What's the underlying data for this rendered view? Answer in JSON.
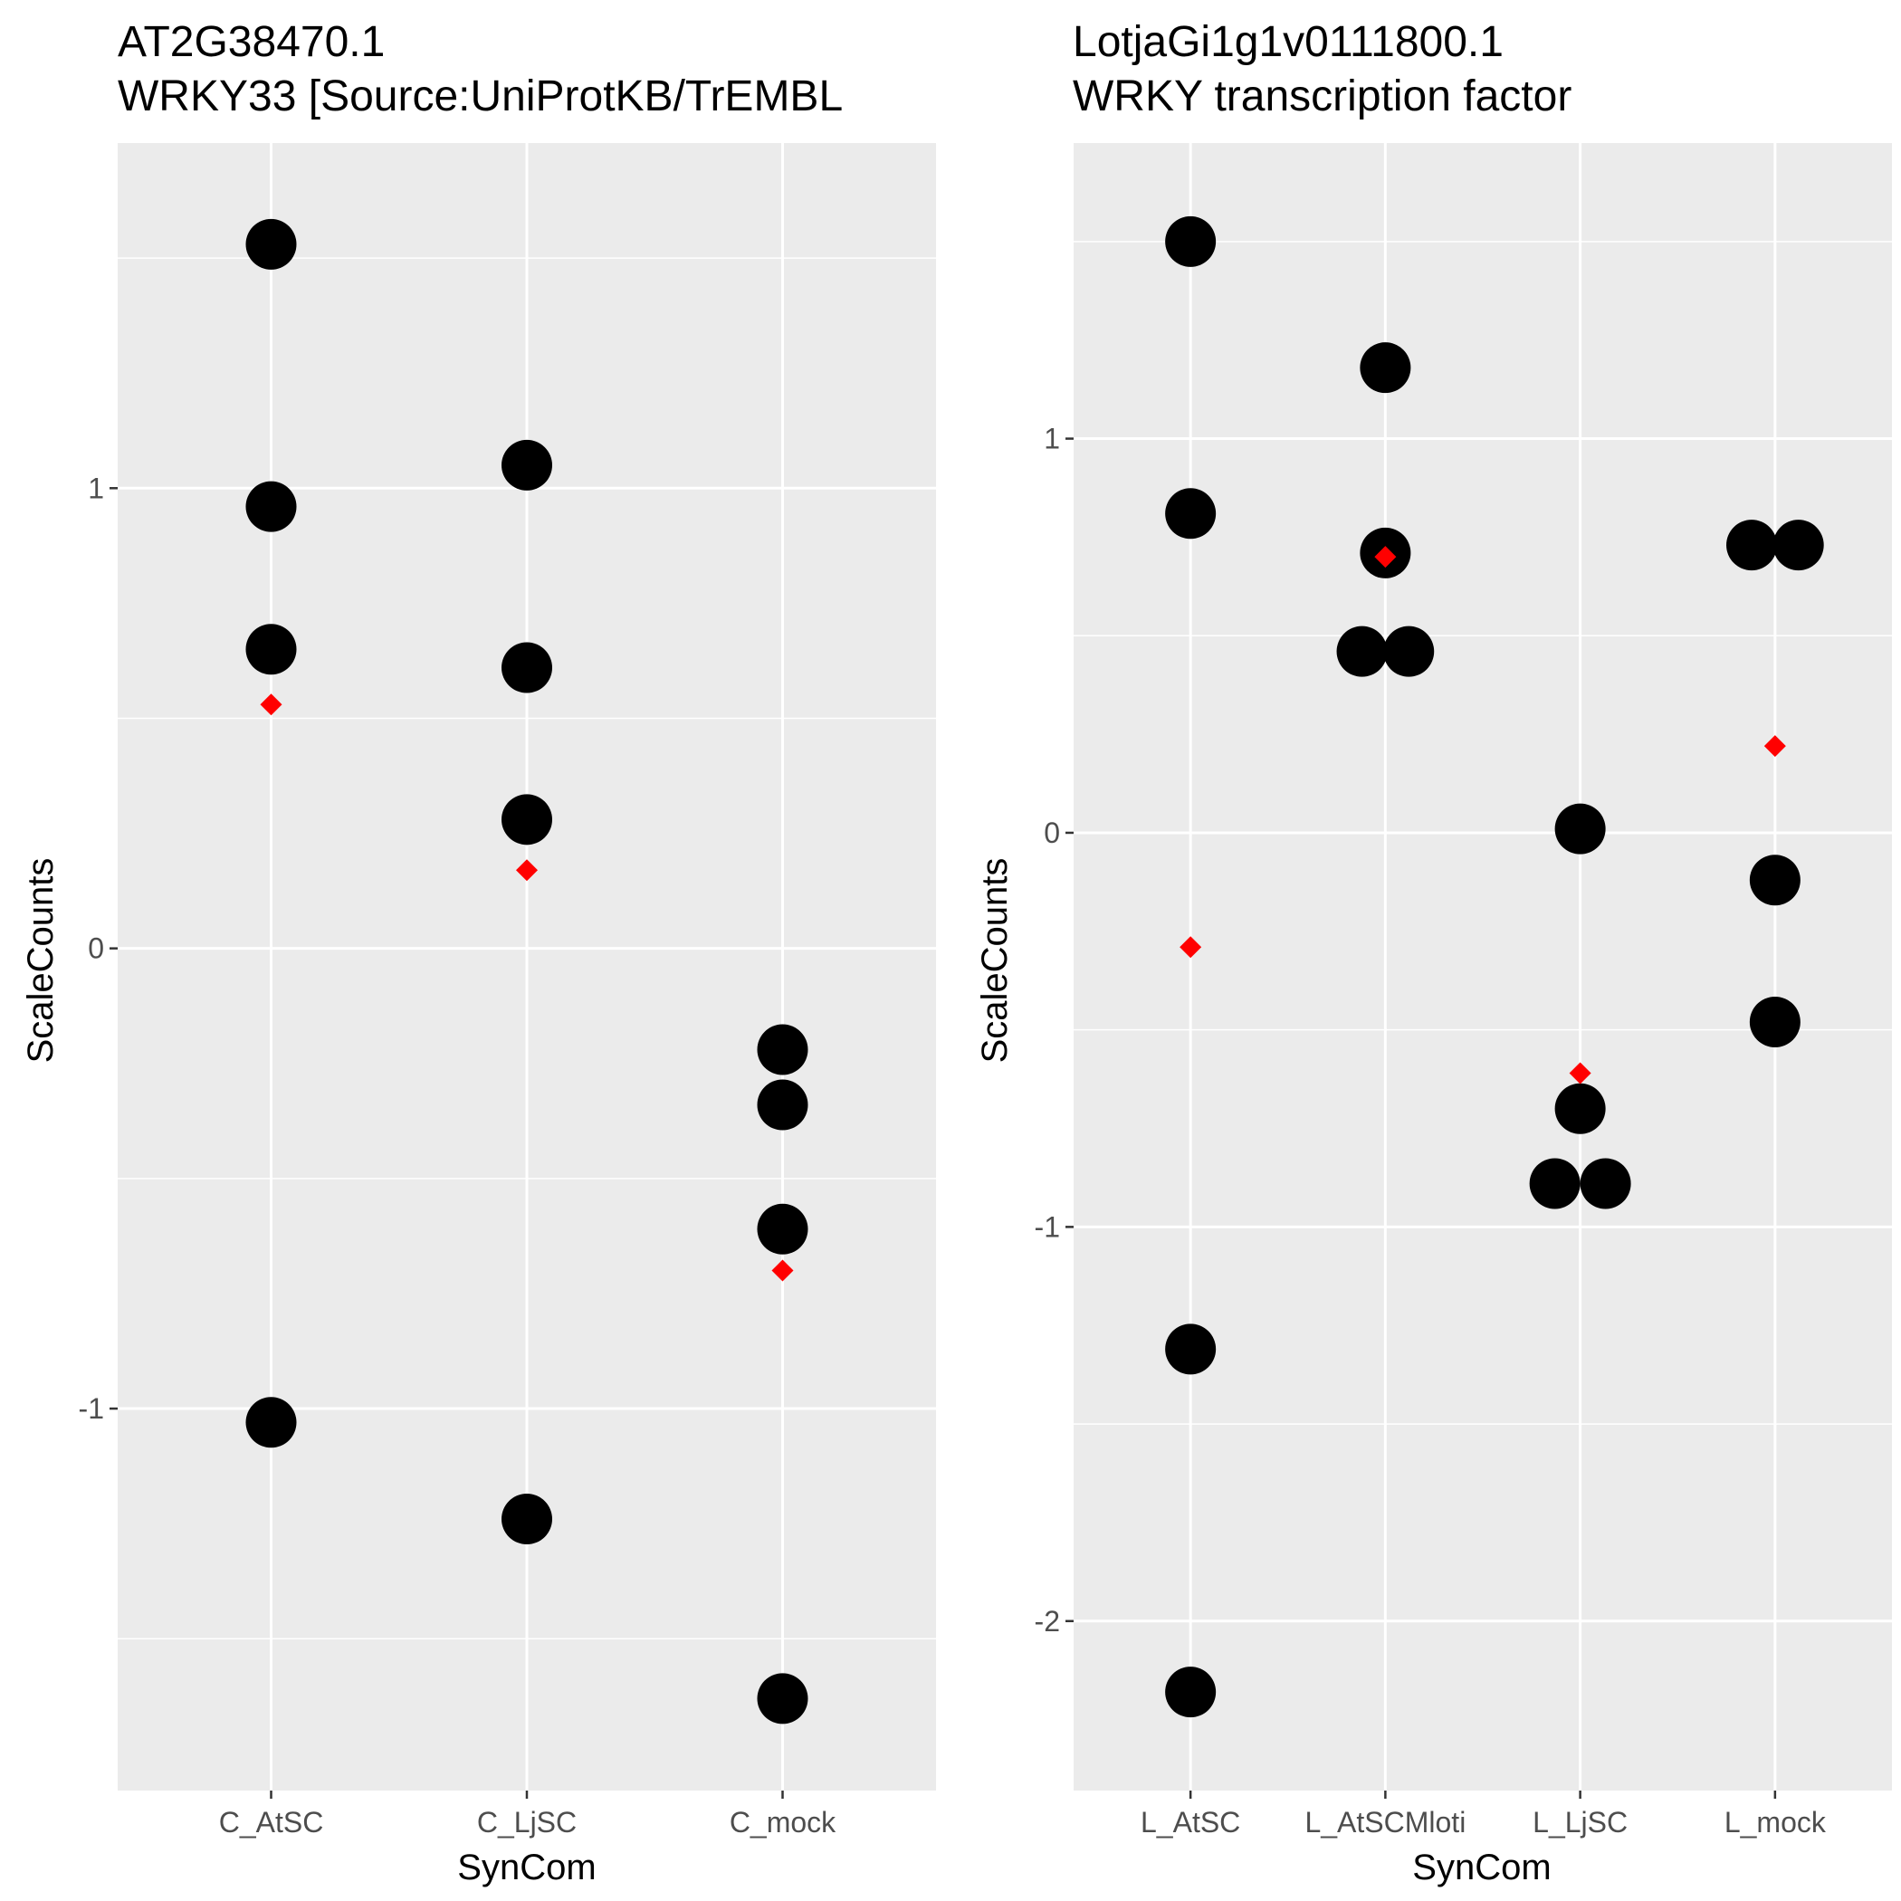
{
  "chart_data": [
    {
      "type": "scatter",
      "title": "AT2G38470.1",
      "subtitle": "WRKY33 [Source:UniProtKB/TrEMBL",
      "xlabel": "SynCom",
      "ylabel": "ScaleCounts",
      "categories": [
        "C_AtSC",
        "C_LjSC",
        "C_mock"
      ],
      "ylim": [
        -1.83,
        1.75
      ],
      "yticks": [
        -1,
        0,
        1
      ],
      "ytick_labels": [
        "-1",
        "0",
        "1"
      ],
      "grid": true,
      "colors": {
        "points": "#000000",
        "mean": "#ff0000",
        "panel": "#ebebeb",
        "grid": "#ffffff"
      },
      "points": [
        {
          "category": "C_AtSC",
          "jitter": 0,
          "y": 1.53
        },
        {
          "category": "C_AtSC",
          "jitter": 0,
          "y": 0.96
        },
        {
          "category": "C_AtSC",
          "jitter": 0,
          "y": 0.65
        },
        {
          "category": "C_AtSC",
          "jitter": 0,
          "y": -1.03
        },
        {
          "category": "C_LjSC",
          "jitter": 0,
          "y": 1.05
        },
        {
          "category": "C_LjSC",
          "jitter": 0,
          "y": 0.61
        },
        {
          "category": "C_LjSC",
          "jitter": 0,
          "y": 0.28
        },
        {
          "category": "C_LjSC",
          "jitter": 0,
          "y": -1.24
        },
        {
          "category": "C_mock",
          "jitter": 0,
          "y": -0.22
        },
        {
          "category": "C_mock",
          "jitter": 0,
          "y": -0.34
        },
        {
          "category": "C_mock",
          "jitter": 0,
          "y": -0.61
        },
        {
          "category": "C_mock",
          "jitter": 0,
          "y": -1.63
        }
      ],
      "means": [
        {
          "category": "C_AtSC",
          "y": 0.53
        },
        {
          "category": "C_LjSC",
          "y": 0.17
        },
        {
          "category": "C_mock",
          "y": -0.7
        }
      ]
    },
    {
      "type": "scatter",
      "title": "LotjaGi1g1v0111800.1",
      "subtitle": "WRKY transcription factor",
      "xlabel": "SynCom",
      "ylabel": "ScaleCounts",
      "categories": [
        "L_AtSC",
        "L_AtSCMloti",
        "L_LjSC",
        "L_mock"
      ],
      "ylim": [
        -2.43,
        1.75
      ],
      "yticks": [
        -2,
        -1,
        0,
        1
      ],
      "ytick_labels": [
        "-2",
        "-1",
        "0",
        "1"
      ],
      "grid": true,
      "colors": {
        "points": "#000000",
        "mean": "#ff0000",
        "panel": "#ebebeb",
        "grid": "#ffffff"
      },
      "points": [
        {
          "category": "L_AtSC",
          "jitter": 0,
          "y": 1.5
        },
        {
          "category": "L_AtSC",
          "jitter": 0,
          "y": 0.81
        },
        {
          "category": "L_AtSC",
          "jitter": 0,
          "y": -1.31
        },
        {
          "category": "L_AtSC",
          "jitter": 0,
          "y": -2.18
        },
        {
          "category": "L_AtSCMloti",
          "jitter": 0,
          "y": 1.18
        },
        {
          "category": "L_AtSCMloti",
          "jitter": 0,
          "y": 0.71
        },
        {
          "category": "L_AtSCMloti",
          "jitter": -0.12,
          "y": 0.46
        },
        {
          "category": "L_AtSCMloti",
          "jitter": 0.12,
          "y": 0.46
        },
        {
          "category": "L_LjSC",
          "jitter": 0,
          "y": 0.01
        },
        {
          "category": "L_LjSC",
          "jitter": 0,
          "y": -0.7
        },
        {
          "category": "L_LjSC",
          "jitter": -0.13,
          "y": -0.89
        },
        {
          "category": "L_LjSC",
          "jitter": 0.13,
          "y": -0.89
        },
        {
          "category": "L_mock",
          "jitter": -0.12,
          "y": 0.73
        },
        {
          "category": "L_mock",
          "jitter": 0.12,
          "y": 0.73
        },
        {
          "category": "L_mock",
          "jitter": 0,
          "y": -0.12
        },
        {
          "category": "L_mock",
          "jitter": 0,
          "y": -0.48
        }
      ],
      "means": [
        {
          "category": "L_AtSC",
          "y": -0.29
        },
        {
          "category": "L_AtSCMloti",
          "y": 0.7
        },
        {
          "category": "L_LjSC",
          "y": -0.61
        },
        {
          "category": "L_mock",
          "y": 0.22
        }
      ]
    }
  ]
}
